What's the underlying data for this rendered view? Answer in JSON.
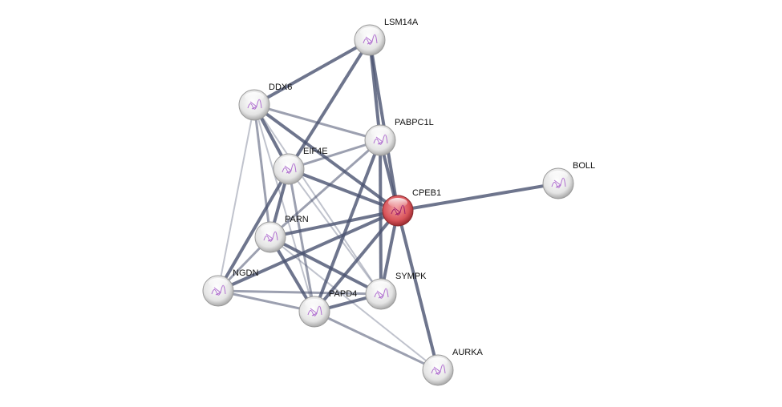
{
  "network": {
    "nodes": [
      {
        "id": "LSM14A",
        "label": "LSM14A",
        "query": false
      },
      {
        "id": "DDX6",
        "label": "DDX6",
        "query": false
      },
      {
        "id": "PABPC1L",
        "label": "PABPC1L",
        "query": false
      },
      {
        "id": "EIF4E",
        "label": "EIF4E",
        "query": false
      },
      {
        "id": "CPEB1",
        "label": "CPEB1",
        "query": true
      },
      {
        "id": "BOLL",
        "label": "BOLL",
        "query": false
      },
      {
        "id": "PARN",
        "label": "PARN",
        "query": false
      },
      {
        "id": "NGDN",
        "label": "NGDN",
        "query": false
      },
      {
        "id": "SYMPK",
        "label": "SYMPK",
        "query": false
      },
      {
        "id": "PAPD4",
        "label": "PAPD4",
        "query": false
      },
      {
        "id": "AURKA",
        "label": "AURKA",
        "query": false
      }
    ],
    "edges": [
      [
        "LSM14A",
        "DDX6",
        "strong"
      ],
      [
        "LSM14A",
        "EIF4E",
        "strong"
      ],
      [
        "LSM14A",
        "PABPC1L",
        "strong"
      ],
      [
        "LSM14A",
        "CPEB1",
        "strong"
      ],
      [
        "DDX6",
        "PABPC1L",
        "medium"
      ],
      [
        "DDX6",
        "EIF4E",
        "strong"
      ],
      [
        "DDX6",
        "CPEB1",
        "strong"
      ],
      [
        "DDX6",
        "NGDN",
        "weak"
      ],
      [
        "DDX6",
        "PARN",
        "medium"
      ],
      [
        "DDX6",
        "PAPD4",
        "weak"
      ],
      [
        "DDX6",
        "SYMPK",
        "weak"
      ],
      [
        "PABPC1L",
        "EIF4E",
        "medium"
      ],
      [
        "PABPC1L",
        "CPEB1",
        "strong"
      ],
      [
        "PABPC1L",
        "PARN",
        "medium"
      ],
      [
        "PABPC1L",
        "PAPD4",
        "strong"
      ],
      [
        "PABPC1L",
        "SYMPK",
        "strong"
      ],
      [
        "EIF4E",
        "CPEB1",
        "strong"
      ],
      [
        "EIF4E",
        "PARN",
        "strong"
      ],
      [
        "EIF4E",
        "NGDN",
        "strong"
      ],
      [
        "EIF4E",
        "PAPD4",
        "medium"
      ],
      [
        "EIF4E",
        "SYMPK",
        "weak"
      ],
      [
        "CPEB1",
        "BOLL",
        "strong"
      ],
      [
        "CPEB1",
        "PARN",
        "strong"
      ],
      [
        "CPEB1",
        "NGDN",
        "strong"
      ],
      [
        "CPEB1",
        "PAPD4",
        "strong"
      ],
      [
        "CPEB1",
        "SYMPK",
        "strong"
      ],
      [
        "CPEB1",
        "AURKA",
        "strong"
      ],
      [
        "PARN",
        "NGDN",
        "medium"
      ],
      [
        "PARN",
        "PAPD4",
        "strong"
      ],
      [
        "PARN",
        "SYMPK",
        "strong"
      ],
      [
        "PARN",
        "AURKA",
        "weak"
      ],
      [
        "NGDN",
        "PAPD4",
        "medium"
      ],
      [
        "NGDN",
        "SYMPK",
        "medium"
      ],
      [
        "PAPD4",
        "SYMPK",
        "strong"
      ],
      [
        "PAPD4",
        "AURKA",
        "medium"
      ]
    ],
    "colors": {
      "node": "#e6e6e6",
      "query_node": "#d9545a",
      "edge": "#4a5270"
    }
  }
}
